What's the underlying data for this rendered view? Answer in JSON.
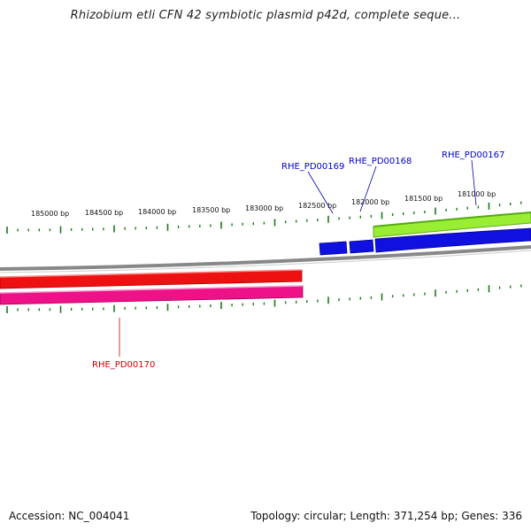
{
  "header": {
    "title": "Rhizobium etli CFN 42 symbiotic plasmid p42d, complete seque..."
  },
  "ruler": {
    "labels": [
      "185000 bp",
      "184500 bp",
      "184000 bp",
      "183500 bp",
      "183000 bp",
      "182500 bp",
      "182000 bp",
      "181500 bp",
      "181000 bp"
    ]
  },
  "genes": {
    "forward": [
      {
        "name": "RHE_PD00167",
        "color": "#0000cc"
      },
      {
        "name": "RHE_PD00168",
        "color": "#0000cc"
      },
      {
        "name": "RHE_PD00169",
        "color": "#0000cc"
      }
    ],
    "reverse": [
      {
        "name": "RHE_PD00170",
        "color": "#cc0000"
      }
    ]
  },
  "colors": {
    "backbone": "#888888",
    "forward_gene": "#1010e0",
    "green_feature": "#99ee33",
    "red_feature": "#ee1111",
    "pink_feature": "#ee1188",
    "ticks": "#1a7a1a"
  },
  "footer": {
    "accession": "Accession: NC_004041",
    "summary": "Topology: circular; Length: 371,254 bp; Genes: 336"
  }
}
